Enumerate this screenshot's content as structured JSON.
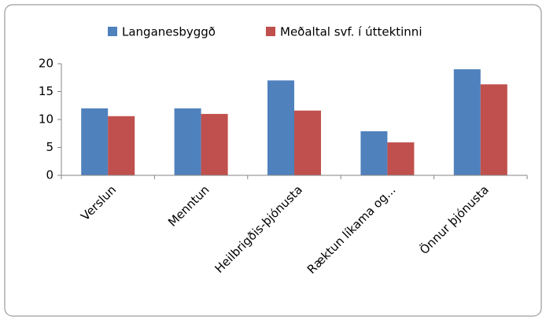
{
  "chart_data": {
    "type": "bar",
    "categories": [
      "Verslun",
      "Menntun",
      "Heilbrigðis-þjónusta",
      "Ræktun líkama og...",
      "Önnur þjónusta"
    ],
    "series": [
      {
        "name": "Langanesbyggð",
        "color": "#4f81bd",
        "values": [
          12,
          12,
          17,
          7.9,
          19
        ]
      },
      {
        "name": "Meðaltal svf. í úttektinni",
        "color": "#c0504d",
        "values": [
          10.6,
          11,
          11.6,
          5.9,
          16.3
        ]
      }
    ],
    "ylim": [
      0,
      20
    ],
    "yticks": [
      0,
      5,
      10,
      15,
      20
    ],
    "grid": false,
    "legend": "top"
  }
}
